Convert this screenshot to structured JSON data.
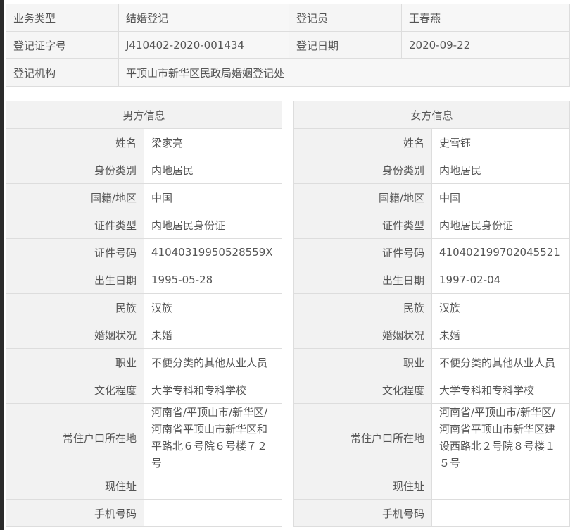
{
  "summary": {
    "business_type_label": "业务类型",
    "business_type": "结婚登记",
    "registrar_label": "登记员",
    "registrar": "王春燕",
    "cert_no_label": "登记证字号",
    "cert_no": "J410402-2020-001434",
    "reg_date_label": "登记日期",
    "reg_date": "2020-09-22",
    "office_label": "登记机构",
    "office": "平顶山市新华区民政局婚姻登记处"
  },
  "labels": [
    "姓名",
    "身份类别",
    "国籍/地区",
    "证件类型",
    "证件号码",
    "出生日期",
    "民族",
    "婚姻状况",
    "职业",
    "文化程度",
    "常住户口所在地",
    "现住址",
    "手机号码"
  ],
  "male": {
    "title": "男方信息",
    "values": [
      "梁家亮",
      "内地居民",
      "中国",
      "内地居民身份证",
      "41040319950528559X",
      "1995-05-28",
      "汉族",
      "未婚",
      "不便分类的其他从业人员",
      "大学专科和专科学校",
      "河南省/平顶山市/新华区/河南省平顶山市新华区和平路北６号院６号楼７２号",
      "",
      ""
    ]
  },
  "female": {
    "title": "女方信息",
    "values": [
      "史雪钰",
      "内地居民",
      "中国",
      "内地居民身份证",
      "410402199702045521",
      "1997-02-04",
      "汉族",
      "未婚",
      "不便分类的其他从业人员",
      "大学专科和专科学校",
      "河南省/平顶山市/新华区/河南省平顶山市新华区建设西路北２号院８号楼１５号",
      "",
      ""
    ]
  }
}
